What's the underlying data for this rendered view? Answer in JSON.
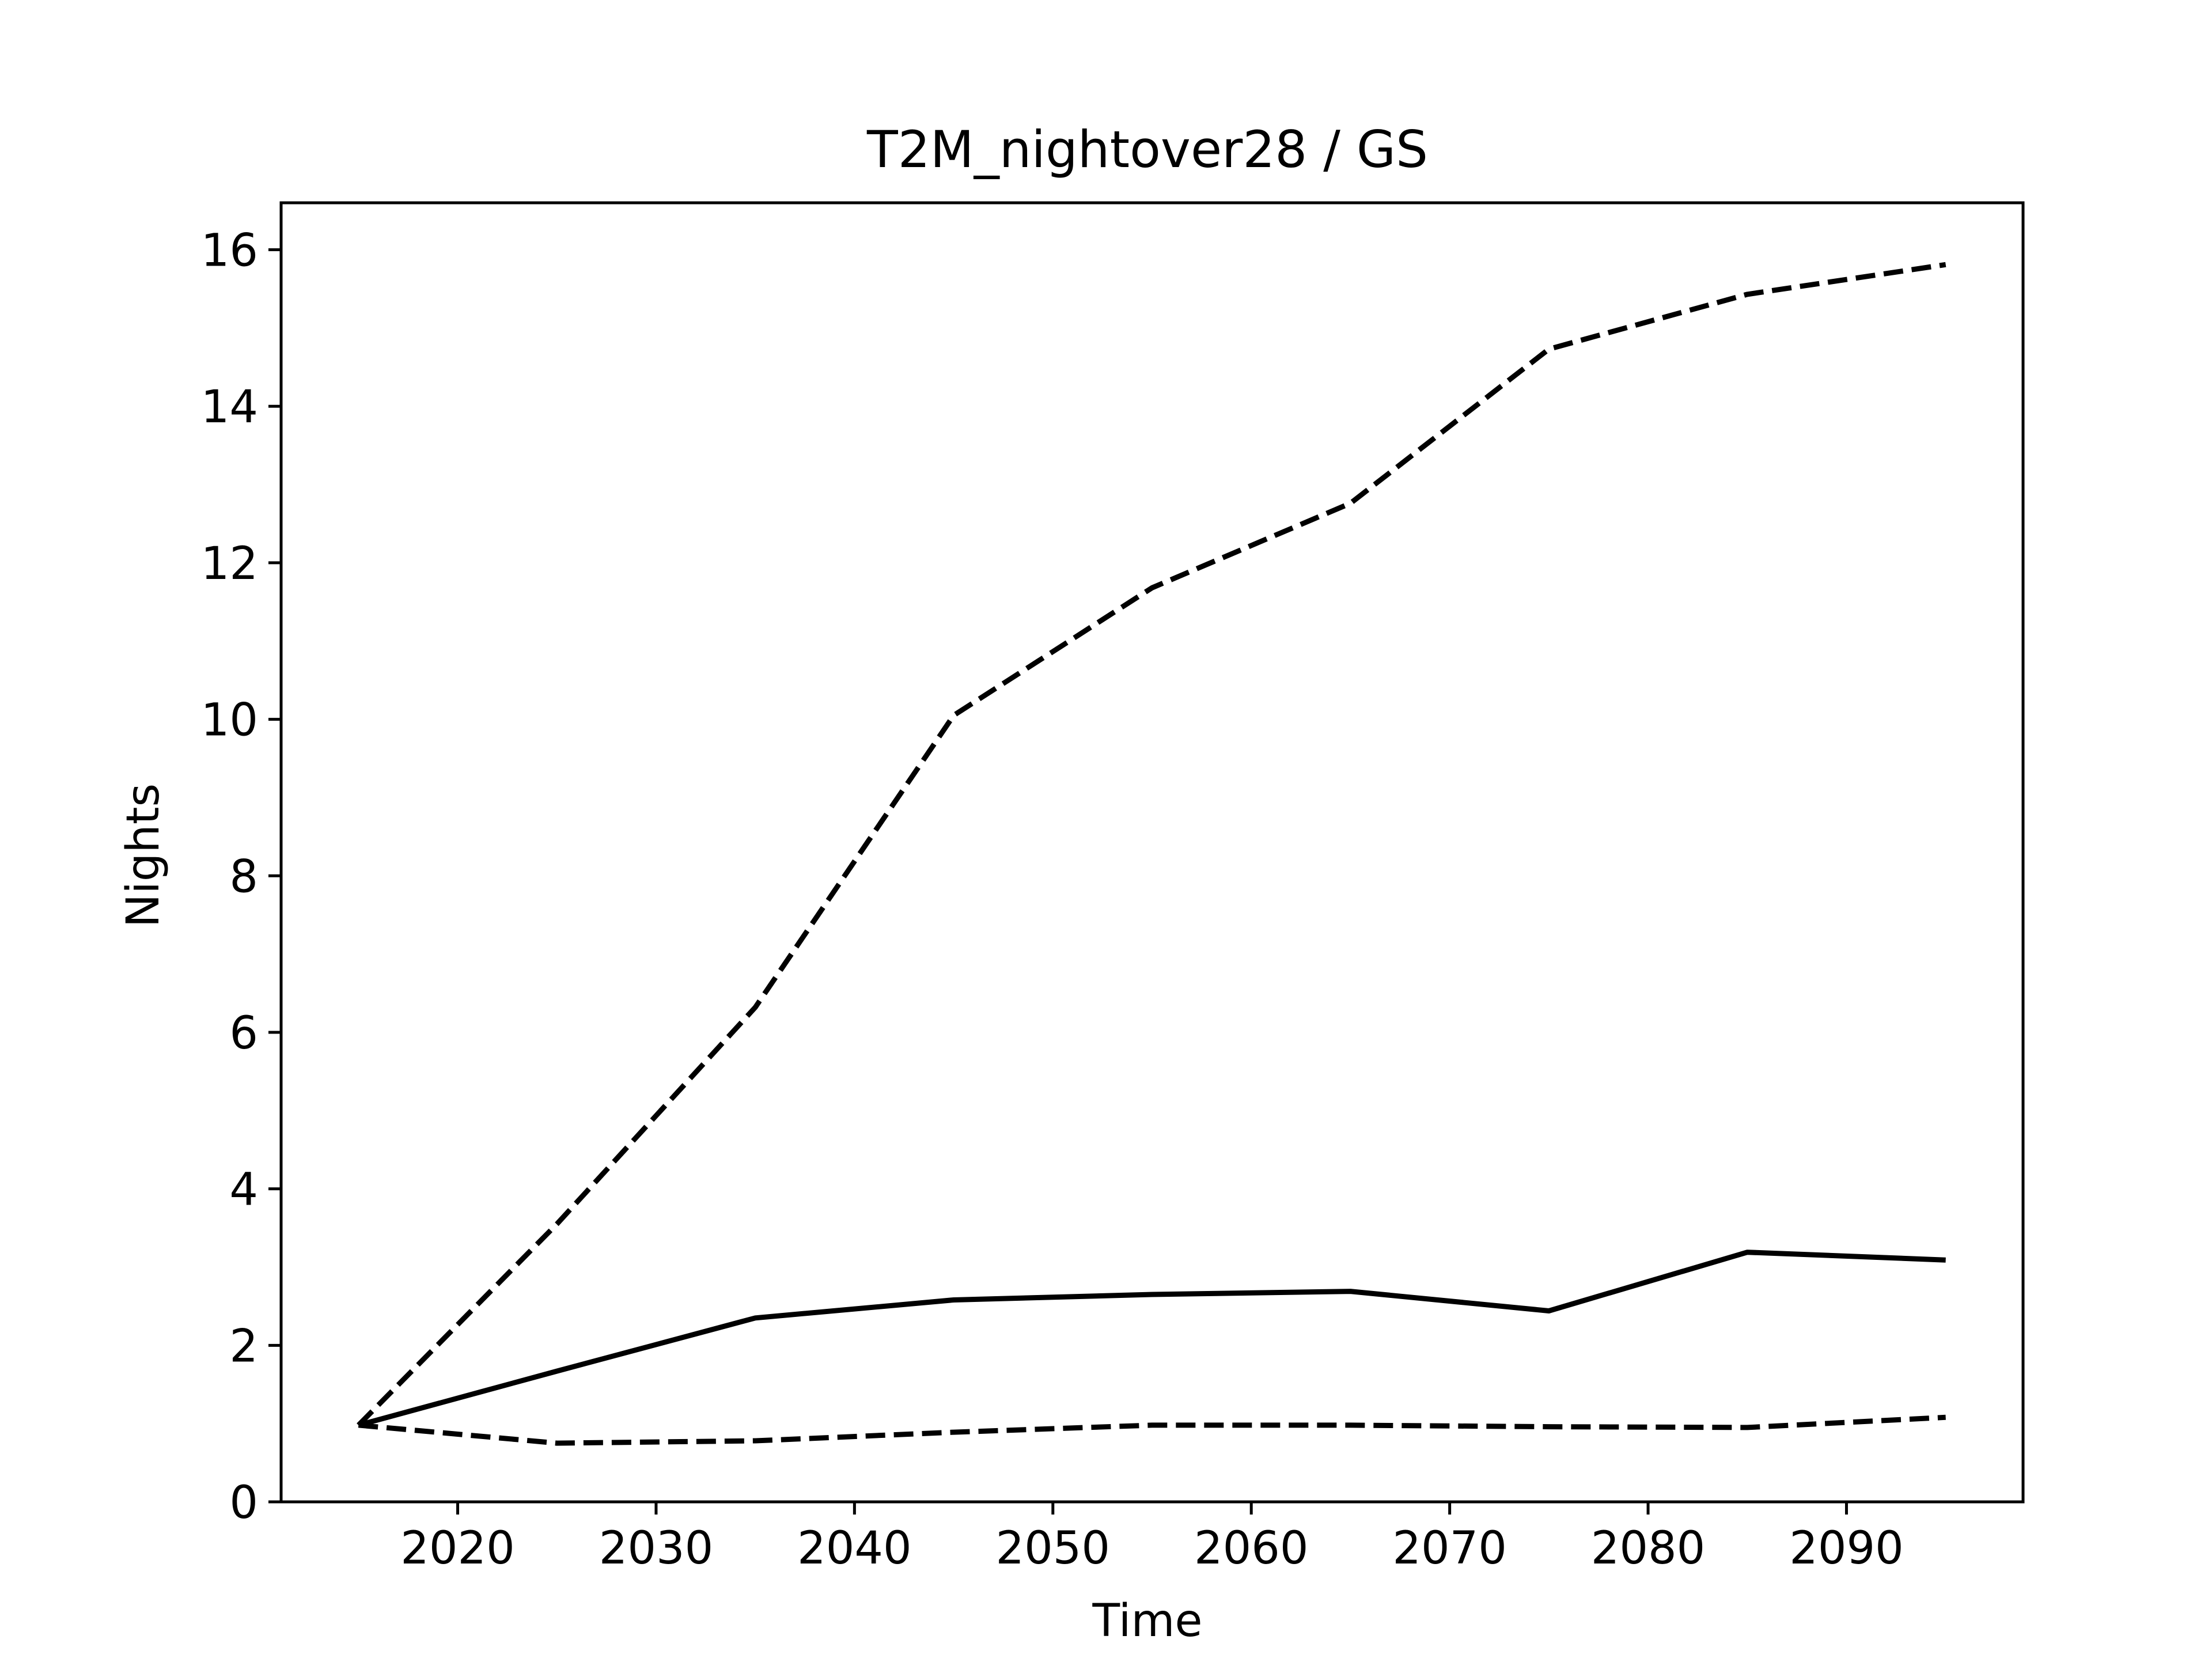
{
  "chart_data": {
    "type": "line",
    "title": "T2M_nightover28 / GS",
    "xlabel": "Time",
    "ylabel": "Nights",
    "xlim": [
      2011.1,
      2098.9
    ],
    "ylim": [
      0,
      16.6
    ],
    "xticks": [
      2020,
      2030,
      2040,
      2050,
      2060,
      2070,
      2080,
      2090
    ],
    "yticks": [
      0,
      2,
      4,
      6,
      8,
      10,
      12,
      14,
      16
    ],
    "grid": false,
    "x": [
      2015,
      2025,
      2035,
      2045,
      2055,
      2065,
      2075,
      2085,
      2095
    ],
    "series": [
      {
        "style": "solid",
        "color": "#000000",
        "values": [
          0.98,
          1.67,
          2.35,
          2.58,
          2.65,
          2.69,
          2.44,
          3.19,
          3.09
        ]
      },
      {
        "style": "dashed",
        "color": "#000000",
        "values": [
          0.98,
          3.55,
          6.32,
          10.05,
          11.68,
          12.76,
          14.73,
          15.43,
          15.81
        ]
      },
      {
        "style": "dashed",
        "color": "#000000",
        "values": [
          0.98,
          0.75,
          0.78,
          0.89,
          0.98,
          0.98,
          0.96,
          0.95,
          1.08
        ]
      }
    ]
  }
}
